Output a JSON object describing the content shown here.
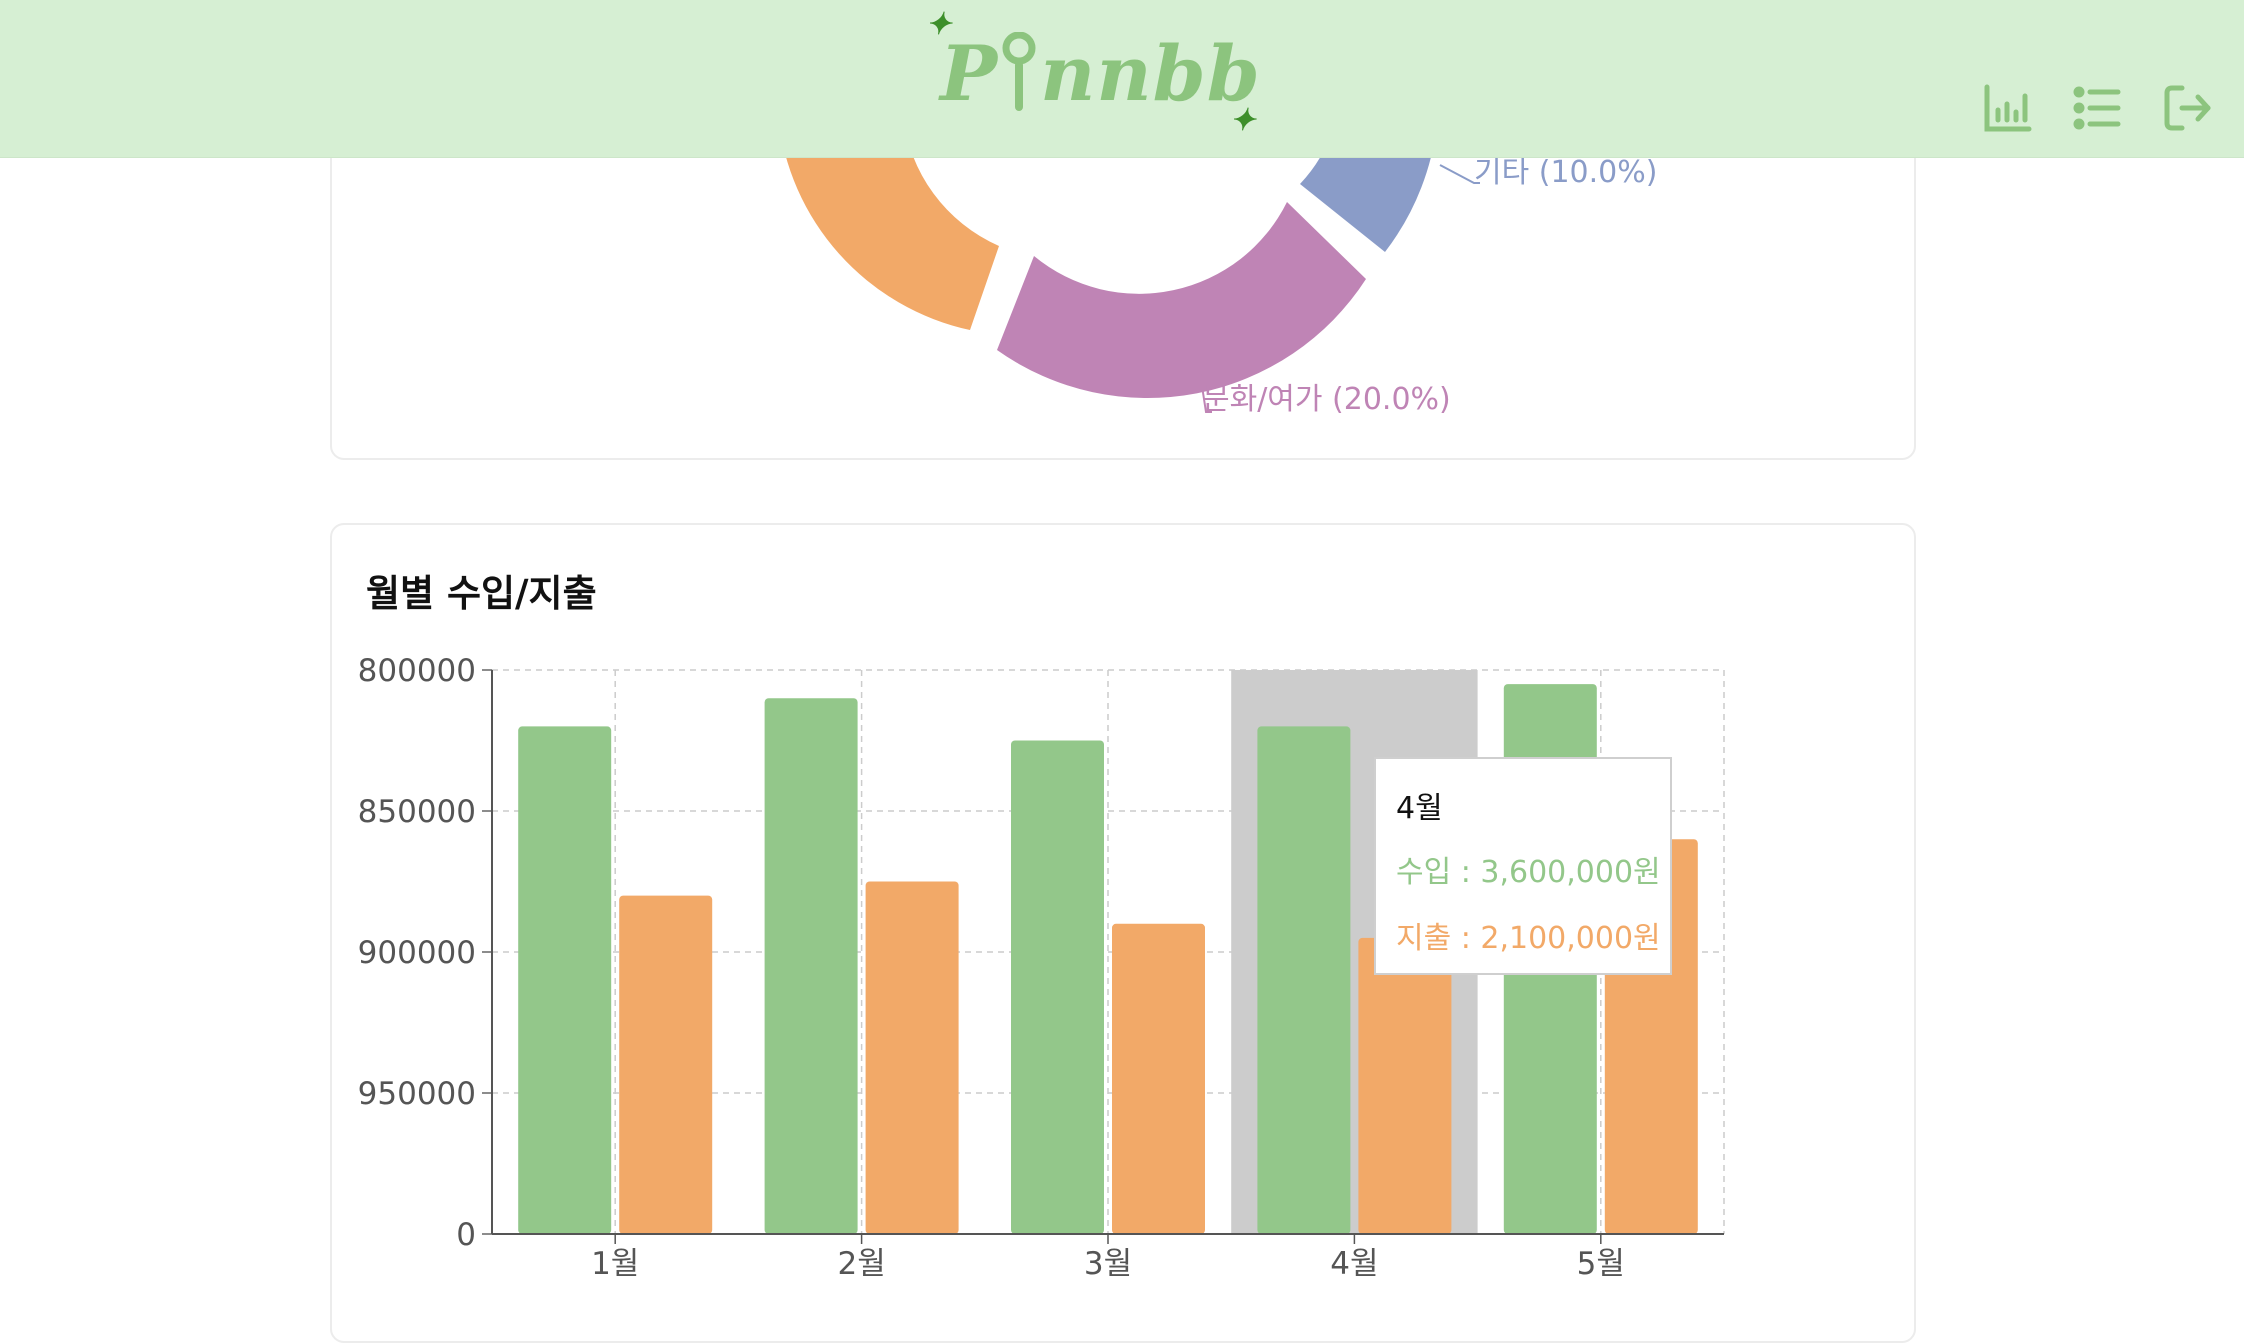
{
  "header": {
    "logo_text": "Pinnbb",
    "nav": [
      {
        "name": "chart-icon"
      },
      {
        "name": "list-icon"
      },
      {
        "name": "logout-icon"
      }
    ],
    "colors": {
      "background": "#d6efd3",
      "logo": "#8cc47e",
      "icons": "#8cc47e",
      "sparkle": "#3d8f2a"
    }
  },
  "category_chart": {
    "labels": [
      {
        "text": "기타 (10.0%)",
        "color": "#8a9cc8"
      },
      {
        "text": "문화/여가 (20.0%)",
        "color": "#bf84b5"
      }
    ],
    "slice_colors": {
      "orange": "#f2a968",
      "purple": "#bf84b5",
      "blue": "#8a9cc8"
    }
  },
  "monthly": {
    "title": "월별 수입/지출",
    "chart_data": {
      "type": "bar",
      "categories": [
        "1월",
        "2월",
        "3월",
        "4월",
        "5월"
      ],
      "y_tick_labels": [
        "800000",
        "850000",
        "900000",
        "950000",
        "0"
      ],
      "series": [
        {
          "name": "수입",
          "color": "#93c78a",
          "values": [
            3600000,
            3800000,
            3500000,
            3600000,
            3900000
          ]
        },
        {
          "name": "지출",
          "color": "#f2a968",
          "values": [
            2400000,
            2500000,
            2200000,
            2100000,
            2800000
          ]
        }
      ],
      "grid": true,
      "highlight_category": "4월"
    },
    "tooltip": {
      "title": "4월",
      "income": "수입 : 3,600,000원",
      "expense": "지출 : 2,100,000원",
      "income_color": "#93c78a",
      "expense_color": "#f2a968"
    }
  }
}
